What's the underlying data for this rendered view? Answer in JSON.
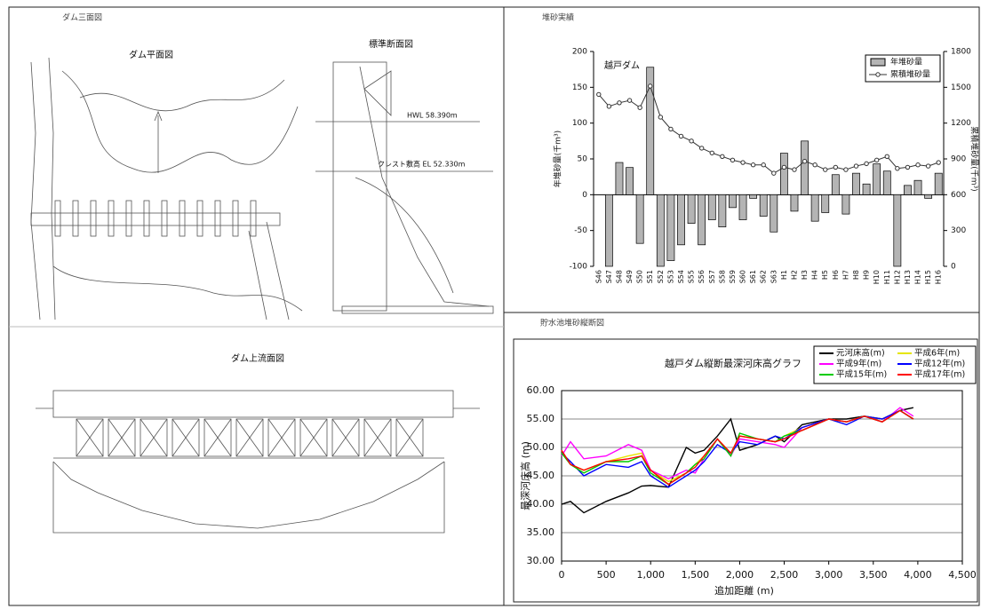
{
  "panels": {
    "drawings_title": "ダム三面図",
    "plan_title": "ダム平面図",
    "section_title": "標準断面図",
    "hwl": "HWL 58.390m",
    "crest": "クレスト敷高 EL 52.330m",
    "upstream_title": "ダム上流面図",
    "sediment_title": "堆砂実績",
    "profile_title": "貯水池堆砂縦断図"
  },
  "chart_data": [
    {
      "type": "bar",
      "annotation": "越戸ダム",
      "y_label": "年堆砂量(千m³)",
      "y2_label": "累積堆砂量(千m³)",
      "categories": [
        "S46",
        "S47",
        "S48",
        "S49",
        "S50",
        "S51",
        "S52",
        "S53",
        "S54",
        "S55",
        "S56",
        "S57",
        "S58",
        "S59",
        "S60",
        "S61",
        "S62",
        "S63",
        "H1",
        "H2",
        "H3",
        "H4",
        "H5",
        "H6",
        "H7",
        "H8",
        "H9",
        "H10",
        "H11",
        "H12",
        "H13",
        "H14",
        "H15",
        "H16"
      ],
      "series": [
        {
          "name": "年堆砂量",
          "color": "#b4b4b4",
          "values": [
            0,
            -100,
            45,
            38,
            -68,
            178,
            -100,
            -92,
            -70,
            -40,
            -70,
            -35,
            -45,
            -18,
            -35,
            -5,
            -30,
            -52,
            58,
            -23,
            75,
            -37,
            -25,
            28,
            -27,
            30,
            15,
            43,
            33,
            -100,
            13,
            20,
            -5,
            30
          ]
        },
        {
          "name": "累積堆砂量",
          "color": "#333333",
          "axis": "y2",
          "values": [
            1440,
            1340,
            1370,
            1390,
            1330,
            1510,
            1250,
            1150,
            1090,
            1050,
            990,
            950,
            920,
            890,
            870,
            850,
            850,
            780,
            830,
            810,
            880,
            850,
            810,
            830,
            810,
            840,
            860,
            890,
            920,
            820,
            830,
            850,
            840,
            870
          ]
        }
      ],
      "ylim": [
        -100,
        200
      ],
      "yticks": [
        -100,
        -50,
        0,
        50,
        100,
        150,
        200
      ],
      "y2lim": [
        0,
        1800
      ],
      "y2ticks": [
        0,
        300,
        600,
        900,
        1200,
        1500,
        1800
      ],
      "legend": "upper right"
    },
    {
      "type": "line",
      "title": "越戸ダム縦断最深河床高グラフ",
      "x_label": "追加距離 (m)",
      "y_label": "最深河床高 (m)",
      "x": [
        0,
        100,
        250,
        500,
        750,
        900,
        1000,
        1200,
        1400,
        1500,
        1600,
        1750,
        1900,
        2000,
        2200,
        2400,
        2500,
        2700,
        3000,
        3200,
        3400,
        3600,
        3800,
        3950
      ],
      "series": [
        {
          "name": "元河床高(m)",
          "color": "#000000",
          "values": [
            40,
            40.5,
            38.5,
            40.5,
            42,
            43.2,
            43.3,
            43,
            50,
            49,
            49.5,
            52,
            55,
            49.5,
            50.5,
            52,
            51,
            54,
            55,
            55,
            55.5,
            55,
            56.5,
            57
          ]
        },
        {
          "name": "平成6年(m)",
          "color": "#e6e600",
          "values": [
            49.5,
            47,
            46,
            47.5,
            48.5,
            49,
            46,
            44,
            45.5,
            47,
            48.5,
            51.5,
            49,
            52,
            51.5,
            51,
            52,
            53.5,
            55,
            54.5,
            55.5,
            55,
            56.5,
            55
          ]
        },
        {
          "name": "平成9年(m)",
          "color": "#ff00ff",
          "values": [
            48.5,
            51,
            48,
            48.5,
            50.5,
            49.5,
            46,
            44.5,
            46,
            45.5,
            48,
            51.5,
            48.5,
            51.5,
            51,
            50.5,
            50,
            53.5,
            55,
            54.5,
            55.5,
            54.5,
            57,
            55.5
          ]
        },
        {
          "name": "平成12年(m)",
          "color": "#0000ff",
          "values": [
            49,
            47.5,
            45,
            47,
            46.5,
            47.5,
            45,
            43,
            45,
            46,
            47.5,
            50.5,
            49,
            51,
            50.5,
            52,
            51.5,
            53.5,
            55,
            54,
            55.5,
            55,
            56.5,
            55
          ]
        },
        {
          "name": "平成15年(m)",
          "color": "#00cc00",
          "values": [
            49,
            47,
            45.5,
            47.5,
            47.5,
            48.5,
            45.5,
            43.5,
            45.5,
            47,
            48,
            51.5,
            48.5,
            52.5,
            51.5,
            51,
            52,
            53,
            55,
            54.5,
            55.5,
            54.5,
            56.5,
            55
          ]
        },
        {
          "name": "平成17年(m)",
          "color": "#ff0000",
          "values": [
            49.5,
            47,
            46,
            47.5,
            48,
            48.5,
            46,
            43.5,
            45.5,
            46.5,
            48.5,
            51.5,
            49,
            52,
            51.5,
            51,
            51.5,
            53,
            55,
            54.5,
            55.5,
            54.5,
            56.5,
            55
          ]
        }
      ],
      "xlim": [
        0,
        4500
      ],
      "xticks": [
        0,
        500,
        {
          "value": 1000,
          "label": "1,000"
        },
        {
          "value": 1500,
          "label": "1,500"
        },
        {
          "value": 2000,
          "label": "2,000"
        },
        {
          "value": 2500,
          "label": "2,500"
        },
        {
          "value": 3000,
          "label": "3,000"
        },
        {
          "value": 3500,
          "label": "3,500"
        },
        {
          "value": 4000,
          "label": "4,000"
        },
        {
          "value": 4500,
          "label": "4,500"
        }
      ],
      "ylim": [
        30,
        60
      ],
      "yticks": [
        {
          "value": 30,
          "label": "30.00"
        },
        {
          "value": 35,
          "label": "35.00"
        },
        {
          "value": 40,
          "label": "40.00"
        },
        {
          "value": 45,
          "label": "45.00"
        },
        {
          "value": 50,
          "label": "50.00"
        },
        {
          "value": 55,
          "label": "55.00"
        },
        {
          "value": 60,
          "label": "60.00"
        }
      ],
      "grid": true,
      "legend": "upper right"
    }
  ]
}
